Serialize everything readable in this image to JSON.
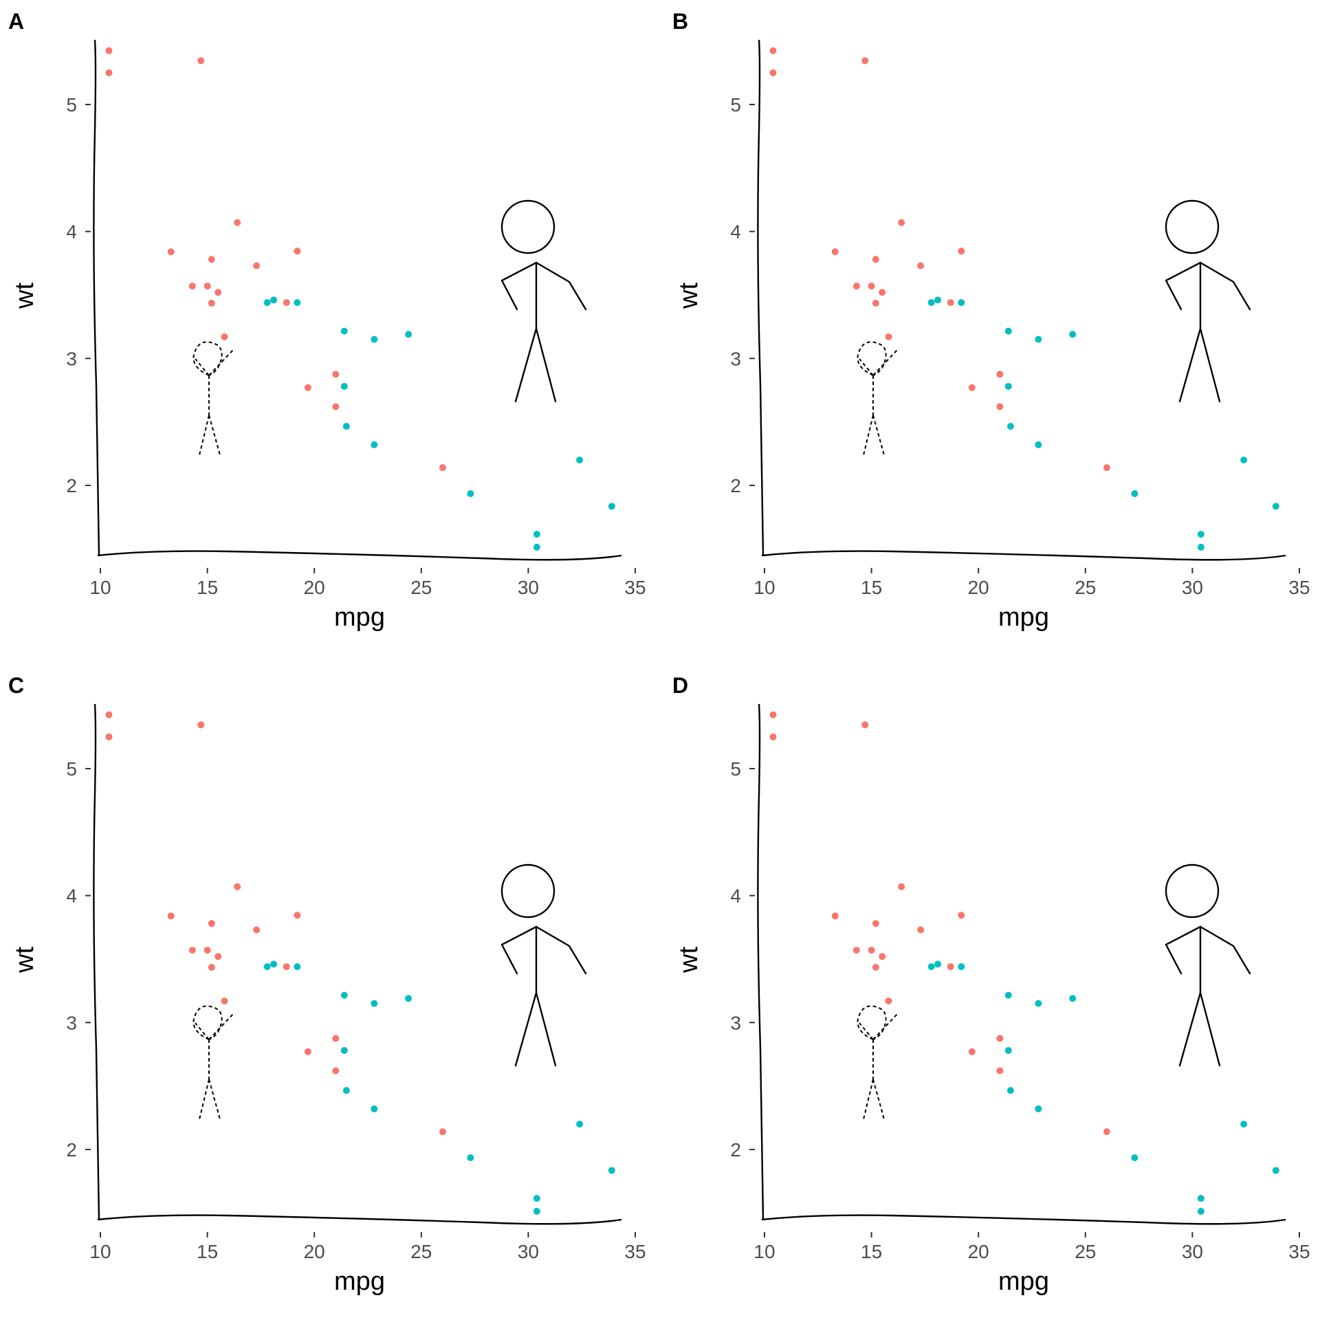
{
  "chart_data": [
    {
      "panel": "A",
      "type": "scatter",
      "title": "",
      "xlabel": "mpg",
      "ylabel": "wt",
      "xlim": [
        9.5,
        34.4
      ],
      "ylim": [
        1.43,
        5.5
      ],
      "x_ticks": [
        "10",
        "15",
        "20",
        "25",
        "30",
        "35"
      ],
      "y_ticks": [
        "2",
        "3",
        "4",
        "5"
      ],
      "grid": false,
      "legend": "none",
      "series": [
        {
          "color": "#F8766D",
          "x": [
            10.4,
            10.4,
            14.7,
            13.3,
            14.3,
            15.2,
            15.0,
            15.5,
            15.2,
            16.4,
            17.3,
            18.7,
            19.2,
            15.8,
            19.7,
            21.0,
            21.0,
            26.0
          ],
          "y": [
            5.424,
            5.25,
            5.345,
            3.84,
            3.57,
            3.78,
            3.57,
            3.52,
            3.435,
            4.07,
            3.73,
            3.44,
            3.845,
            3.17,
            2.77,
            2.875,
            2.62,
            2.14
          ]
        },
        {
          "color": "#00BFC4",
          "x": [
            17.8,
            18.1,
            19.2,
            21.4,
            21.4,
            21.5,
            22.8,
            22.8,
            24.4,
            27.3,
            30.4,
            30.4,
            32.4,
            33.9
          ],
          "y": [
            3.44,
            3.46,
            3.44,
            3.215,
            2.78,
            2.465,
            3.15,
            2.32,
            3.19,
            1.935,
            1.615,
            1.513,
            2.2,
            1.835
          ]
        }
      ]
    },
    {
      "panel": "B",
      "type": "scatter",
      "title": "",
      "xlabel": "mpg",
      "ylabel": "wt",
      "xlim": [
        9.5,
        34.4
      ],
      "ylim": [
        1.43,
        5.5
      ],
      "x_ticks": [
        "10",
        "15",
        "20",
        "25",
        "30",
        "35"
      ],
      "y_ticks": [
        "2",
        "3",
        "4",
        "5"
      ],
      "grid": false,
      "legend": "none",
      "series": [
        {
          "color": "#F8766D",
          "x": [
            10.4,
            10.4,
            14.7,
            13.3,
            14.3,
            15.2,
            15.0,
            15.5,
            15.2,
            16.4,
            17.3,
            18.7,
            19.2,
            15.8,
            19.7,
            21.0,
            21.0,
            26.0
          ],
          "y": [
            5.424,
            5.25,
            5.345,
            3.84,
            3.57,
            3.78,
            3.57,
            3.52,
            3.435,
            4.07,
            3.73,
            3.44,
            3.845,
            3.17,
            2.77,
            2.875,
            2.62,
            2.14
          ]
        },
        {
          "color": "#00BFC4",
          "x": [
            17.8,
            18.1,
            19.2,
            21.4,
            21.4,
            21.5,
            22.8,
            22.8,
            24.4,
            27.3,
            30.4,
            30.4,
            32.4,
            33.9
          ],
          "y": [
            3.44,
            3.46,
            3.44,
            3.215,
            2.78,
            2.465,
            3.15,
            2.32,
            3.19,
            1.935,
            1.615,
            1.513,
            2.2,
            1.835
          ]
        }
      ]
    },
    {
      "panel": "C",
      "type": "scatter",
      "title": "",
      "xlabel": "mpg",
      "ylabel": "wt",
      "xlim": [
        9.5,
        34.4
      ],
      "ylim": [
        1.43,
        5.5
      ],
      "x_ticks": [
        "10",
        "15",
        "20",
        "25",
        "30",
        "35"
      ],
      "y_ticks": [
        "2",
        "3",
        "4",
        "5"
      ],
      "grid": false,
      "legend": "none",
      "series": [
        {
          "color": "#F8766D",
          "x": [
            10.4,
            10.4,
            14.7,
            13.3,
            14.3,
            15.2,
            15.0,
            15.5,
            15.2,
            16.4,
            17.3,
            18.7,
            19.2,
            15.8,
            19.7,
            21.0,
            21.0,
            26.0
          ],
          "y": [
            5.424,
            5.25,
            5.345,
            3.84,
            3.57,
            3.78,
            3.57,
            3.52,
            3.435,
            4.07,
            3.73,
            3.44,
            3.845,
            3.17,
            2.77,
            2.875,
            2.62,
            2.14
          ]
        },
        {
          "color": "#00BFC4",
          "x": [
            17.8,
            18.1,
            19.2,
            21.4,
            21.4,
            21.5,
            22.8,
            22.8,
            24.4,
            27.3,
            30.4,
            30.4,
            32.4,
            33.9
          ],
          "y": [
            3.44,
            3.46,
            3.44,
            3.215,
            2.78,
            2.465,
            3.15,
            2.32,
            3.19,
            1.935,
            1.615,
            1.513,
            2.2,
            1.835
          ]
        }
      ]
    },
    {
      "panel": "D",
      "type": "scatter",
      "title": "",
      "xlabel": "mpg",
      "ylabel": "wt",
      "xlim": [
        9.5,
        34.4
      ],
      "ylim": [
        1.43,
        5.5
      ],
      "x_ticks": [
        "10",
        "15",
        "20",
        "25",
        "30",
        "35"
      ],
      "y_ticks": [
        "2",
        "3",
        "4",
        "5"
      ],
      "grid": false,
      "legend": "none",
      "series": [
        {
          "color": "#F8766D",
          "x": [
            10.4,
            10.4,
            14.7,
            13.3,
            14.3,
            15.2,
            15.0,
            15.5,
            15.2,
            16.4,
            17.3,
            18.7,
            19.2,
            15.8,
            19.7,
            21.0,
            21.0,
            26.0
          ],
          "y": [
            5.424,
            5.25,
            5.345,
            3.84,
            3.57,
            3.78,
            3.57,
            3.52,
            3.435,
            4.07,
            3.73,
            3.44,
            3.845,
            3.17,
            2.77,
            2.875,
            2.62,
            2.14
          ]
        },
        {
          "color": "#00BFC4",
          "x": [
            17.8,
            18.1,
            19.2,
            21.4,
            21.4,
            21.5,
            22.8,
            22.8,
            24.4,
            27.3,
            30.4,
            30.4,
            32.4,
            33.9
          ],
          "y": [
            3.44,
            3.46,
            3.44,
            3.215,
            2.78,
            2.465,
            3.15,
            2.32,
            3.19,
            1.935,
            1.615,
            1.513,
            2.2,
            1.835
          ]
        }
      ]
    }
  ]
}
